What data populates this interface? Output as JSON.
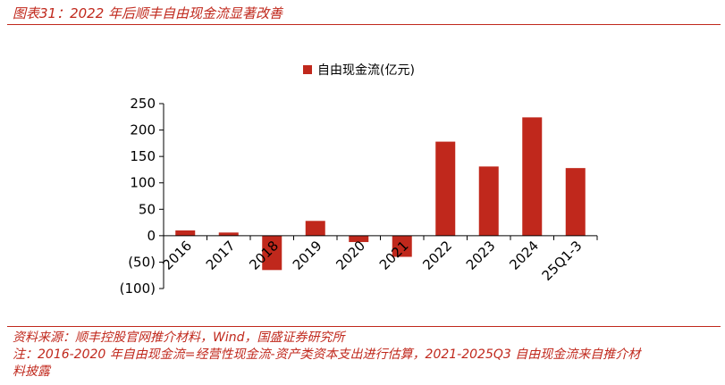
{
  "figure_title": "图表31：2022 年后顺丰自由现金流显著改善",
  "source_lines": [
    "资料来源：顺丰控股官网推介材料，Wind，国盛证券研究所",
    "注：2016-2020 年自由现金流=经营性现金流-资产类资本支出进行估算，2021-2025Q3 自由现金流来自推介材",
    "料披露"
  ],
  "colors": {
    "bar": "#c0281c",
    "accent": "#c0281c"
  },
  "chart_data": {
    "type": "bar",
    "title": "",
    "xlabel": "",
    "ylabel": "",
    "categories": [
      "2016",
      "2017",
      "2018",
      "2019",
      "2020",
      "2021",
      "2022",
      "2023",
      "2024",
      "25Q1-3"
    ],
    "series": [
      {
        "name": "自由现金流(亿元)",
        "values": [
          10,
          6,
          -65,
          28,
          -12,
          -40,
          178,
          131,
          224,
          128
        ]
      }
    ],
    "ylim": [
      -100,
      250
    ],
    "yticks": [
      -100,
      -50,
      0,
      50,
      100,
      150,
      200,
      250
    ],
    "ytick_labels": [
      "(100)",
      "(50)",
      "0",
      "50",
      "100",
      "150",
      "200",
      "250"
    ],
    "legend_position": "top-center",
    "grid": false
  }
}
